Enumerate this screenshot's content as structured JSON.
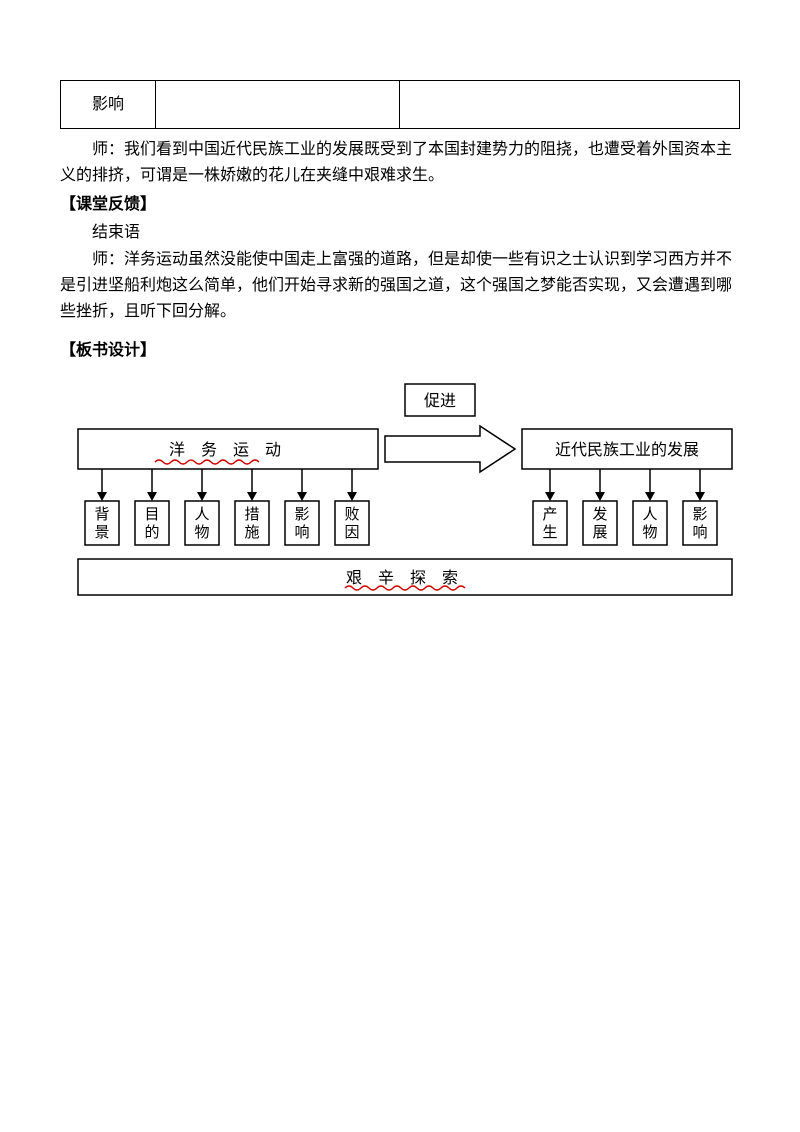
{
  "topTable": {
    "c1": "影响",
    "c2": "",
    "c3": ""
  },
  "para1": "师：我们看到中国近代民族工业的发展既受到了本国封建势力的阻挠，也遭受着外国资本主义的排挤，可谓是一株娇嫩的花儿在夹缝中艰难求生。",
  "section1": "【课堂反馈】",
  "para2": "结束语",
  "para3": "师：洋务运动虽然没能使中国走上富强的道路，但是却使一些有识之士认识到学习西方并不是引进坚船利炮这么简单，他们开始寻求新的强国之道，这个强国之梦能否实现，又会遭遇到哪些挫折，且听下回分解。",
  "section2": "【板书设计】",
  "diagram": {
    "leftTitle": "洋 务 运  动",
    "promote": "促进",
    "rightTitle": "近代民族工业的发展",
    "leftBoxes": [
      "背景",
      "目的",
      "人物",
      "措施",
      "影响",
      "败因"
    ],
    "rightBoxes": [
      "产生",
      "发展",
      "人物",
      "影响"
    ],
    "bottom": "艰 辛 探  索",
    "colors": {
      "stroke": "#000000",
      "fill": "#ffffff",
      "waveUnderline": "#cc0000"
    },
    "lineWidth": 1.5,
    "fontSize": 16,
    "fontSizeSmall": 15
  }
}
